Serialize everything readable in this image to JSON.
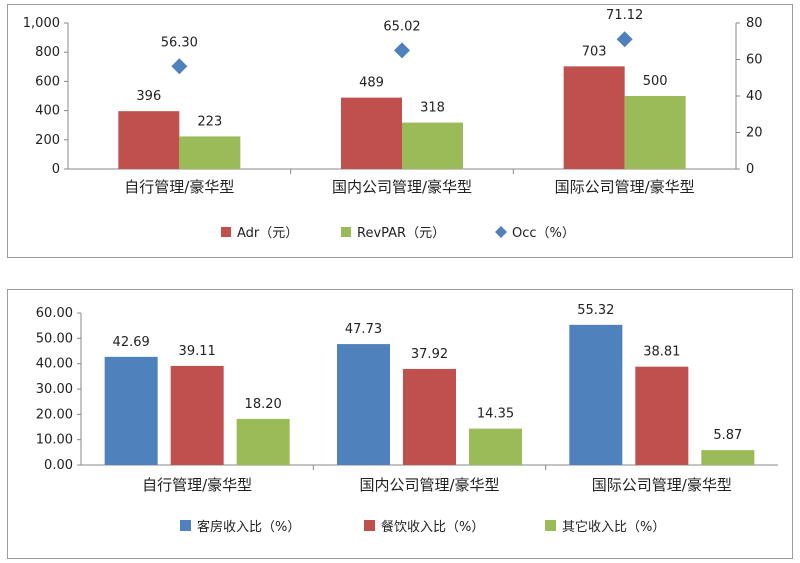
{
  "chart_data": [
    {
      "type": "bar",
      "categories": [
        "自行管理/豪华型",
        "国内公司管理/豪华型",
        "国际公司管理/豪华型"
      ],
      "series": [
        {
          "name": "Adr（元）",
          "values": [
            396,
            489,
            703
          ],
          "color": "#c0504d",
          "axis": "left",
          "style": "bar"
        },
        {
          "name": "RevPAR（元）",
          "values": [
            223,
            318,
            500
          ],
          "color": "#9bbb59",
          "axis": "left",
          "style": "bar"
        },
        {
          "name": "Occ（%）",
          "values": [
            56.3,
            65.02,
            71.12
          ],
          "color": "#4f81bd",
          "axis": "right",
          "style": "marker"
        }
      ],
      "value_labels": [
        [
          "396",
          "489",
          "703"
        ],
        [
          "223",
          "318",
          "500"
        ],
        [
          "56.30",
          "65.02",
          "71.12"
        ]
      ],
      "ylim": [
        0,
        1000
      ],
      "yticks": [
        "0",
        "200",
        "400",
        "600",
        "800",
        "1,000"
      ],
      "y2lim": [
        0,
        80
      ],
      "y2ticks": [
        "0",
        "20",
        "40",
        "60",
        "80"
      ],
      "legend": "bottom"
    },
    {
      "type": "bar",
      "categories": [
        "自行管理/豪华型",
        "国内公司管理/豪华型",
        "国际公司管理/豪华型"
      ],
      "series": [
        {
          "name": "客房收入比（%）",
          "values": [
            42.69,
            47.73,
            55.32
          ],
          "color": "#4f81bd"
        },
        {
          "name": "餐饮收入比（%）",
          "values": [
            39.11,
            37.92,
            38.81
          ],
          "color": "#c0504d"
        },
        {
          "name": "其它收入比（%）",
          "values": [
            18.2,
            14.35,
            5.87
          ],
          "color": "#9bbb59"
        }
      ],
      "value_labels": [
        [
          "42.69",
          "47.73",
          "55.32"
        ],
        [
          "39.11",
          "37.92",
          "38.81"
        ],
        [
          "18.20",
          "14.35",
          "5.87"
        ]
      ],
      "ylim": [
        0,
        60
      ],
      "yticks": [
        "0.00",
        "10.00",
        "20.00",
        "30.00",
        "40.00",
        "50.00",
        "60.00"
      ],
      "legend": "bottom"
    }
  ]
}
